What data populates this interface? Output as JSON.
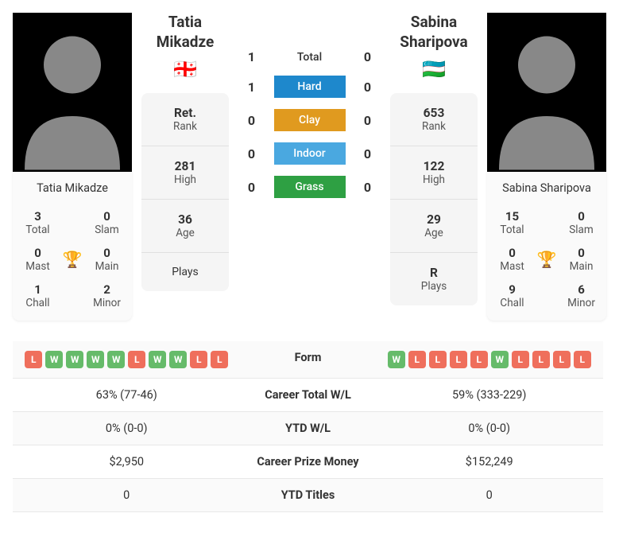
{
  "player1": {
    "name": "Tatia Mikadze",
    "flag": "🇬🇪",
    "titles": {
      "total": {
        "value": "3",
        "label": "Total"
      },
      "slam": {
        "value": "0",
        "label": "Slam"
      },
      "mast": {
        "value": "0",
        "label": "Mast"
      },
      "main": {
        "value": "0",
        "label": "Main"
      },
      "chall": {
        "value": "1",
        "label": "Chall"
      },
      "minor": {
        "value": "2",
        "label": "Minor"
      }
    },
    "info": {
      "rank": {
        "value": "Ret.",
        "label": "Rank"
      },
      "high": {
        "value": "281",
        "label": "High"
      },
      "age": {
        "value": "36",
        "label": "Age"
      },
      "plays": {
        "value": "",
        "label": "Plays"
      }
    },
    "form": [
      "L",
      "W",
      "W",
      "W",
      "W",
      "L",
      "W",
      "W",
      "L",
      "L"
    ],
    "career_wl": "63% (77-46)",
    "ytd_wl": "0% (0-0)",
    "prize": "$2,950",
    "ytd_titles": "0"
  },
  "player2": {
    "name": "Sabina Sharipova",
    "flag": "🇺🇿",
    "titles": {
      "total": {
        "value": "15",
        "label": "Total"
      },
      "slam": {
        "value": "0",
        "label": "Slam"
      },
      "mast": {
        "value": "0",
        "label": "Mast"
      },
      "main": {
        "value": "0",
        "label": "Main"
      },
      "chall": {
        "value": "9",
        "label": "Chall"
      },
      "minor": {
        "value": "6",
        "label": "Minor"
      }
    },
    "info": {
      "rank": {
        "value": "653",
        "label": "Rank"
      },
      "high": {
        "value": "122",
        "label": "High"
      },
      "age": {
        "value": "29",
        "label": "Age"
      },
      "plays": {
        "value": "R",
        "label": "Plays"
      }
    },
    "form": [
      "W",
      "L",
      "L",
      "L",
      "L",
      "W",
      "L",
      "L",
      "L",
      "L"
    ],
    "career_wl": "59% (333-229)",
    "ytd_wl": "0% (0-0)",
    "prize": "$152,249",
    "ytd_titles": "0"
  },
  "surfaces": [
    {
      "label": "Total",
      "p1": "1",
      "p2": "0",
      "color": null
    },
    {
      "label": "Hard",
      "p1": "1",
      "p2": "0",
      "color": "#1e88cc"
    },
    {
      "label": "Clay",
      "p1": "0",
      "p2": "0",
      "color": "#e09a1f"
    },
    {
      "label": "Indoor",
      "p1": "0",
      "p2": "0",
      "color": "#4aa8e0"
    },
    {
      "label": "Grass",
      "p1": "0",
      "p2": "0",
      "color": "#2ea043"
    }
  ],
  "stat_labels": {
    "form": "Form",
    "career_wl": "Career Total W/L",
    "ytd_wl": "YTD W/L",
    "prize": "Career Prize Money",
    "ytd_titles": "YTD Titles"
  },
  "colors": {
    "win": "#66bb6a",
    "loss": "#ef6f5c"
  }
}
